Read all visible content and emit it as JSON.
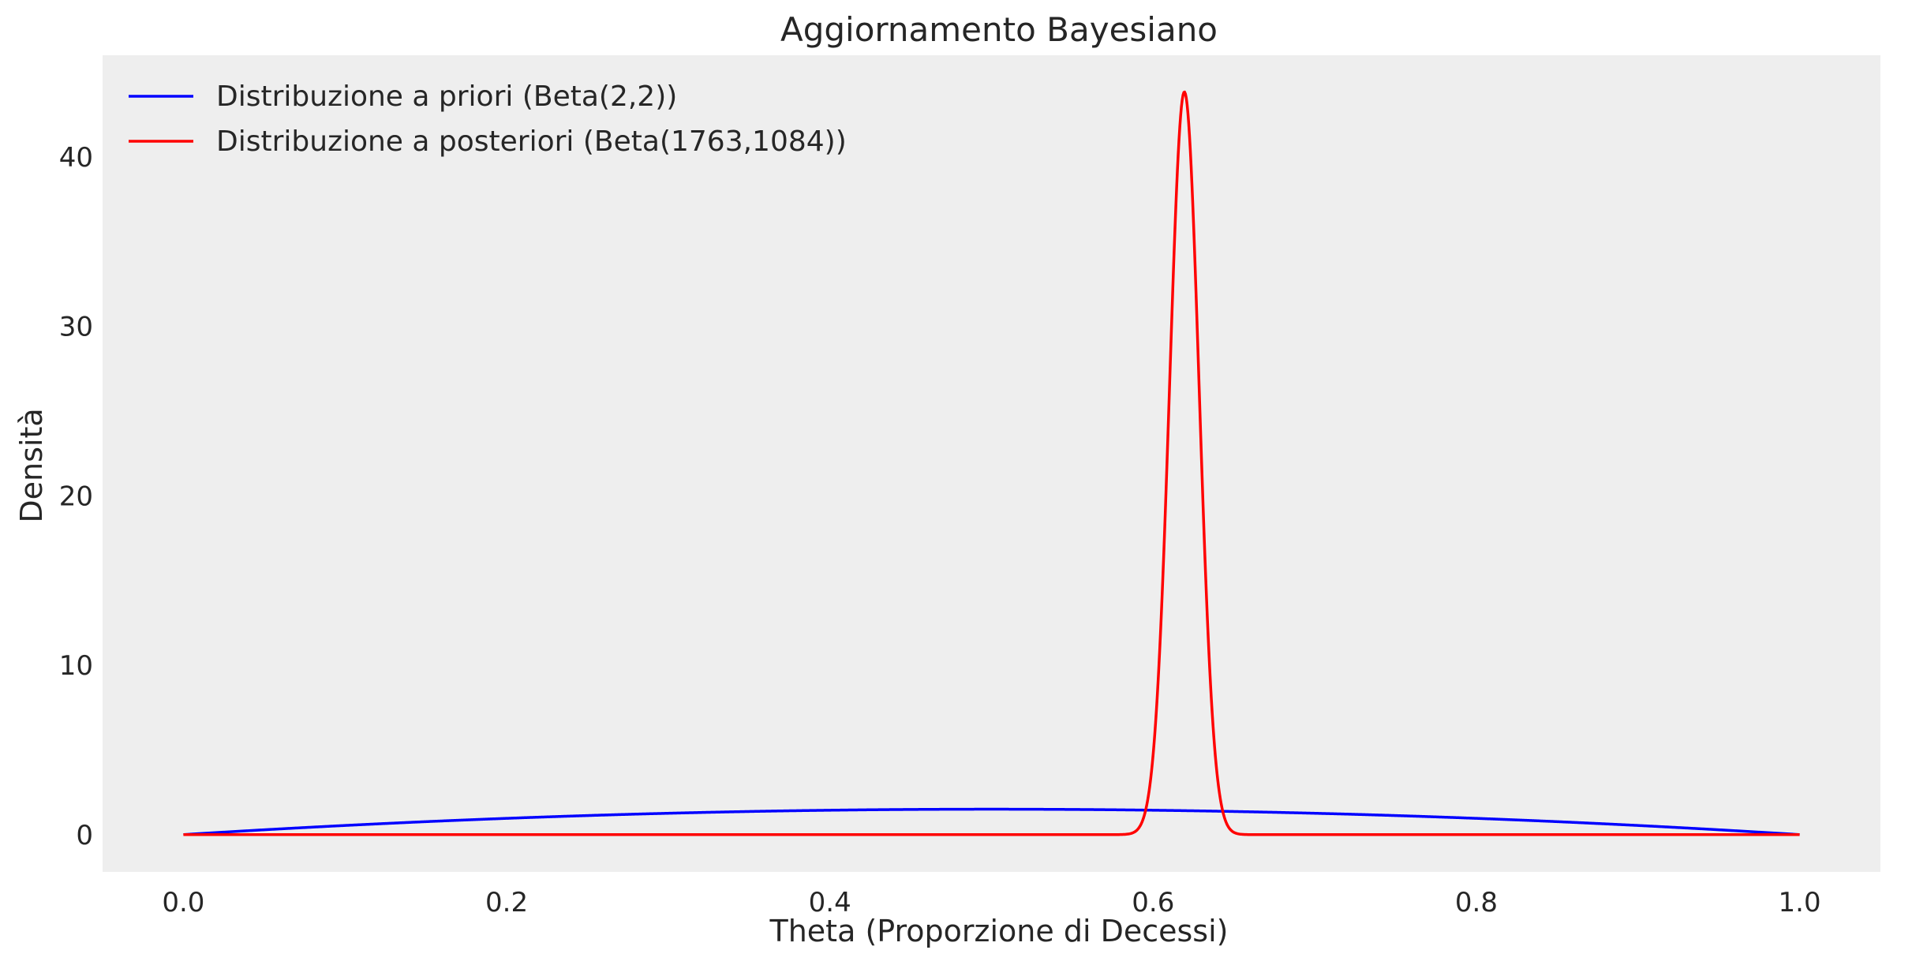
{
  "chart_data": {
    "type": "line",
    "title": "Aggiornamento Bayesiano",
    "xlabel": "Theta (Proporzione di Decessi)",
    "ylabel": "Densità",
    "xlim": [
      -0.05,
      1.05
    ],
    "ylim": [
      -2.2,
      46.0
    ],
    "x_ticks": [
      0.0,
      0.2,
      0.4,
      0.6,
      0.8,
      1.0
    ],
    "x_tick_labels": [
      "0.0",
      "0.2",
      "0.4",
      "0.6",
      "0.8",
      "1.0"
    ],
    "y_ticks": [
      0,
      10,
      20,
      30,
      40
    ],
    "y_tick_labels": [
      "0",
      "10",
      "20",
      "30",
      "40"
    ],
    "grid": false,
    "legend_position": "top-left",
    "background_color": "#eeeeee",
    "series": [
      {
        "name": "Distribuzione a priori (Beta(2,2))",
        "color": "#0000ff",
        "distribution": "beta",
        "alpha": 2,
        "beta": 2
      },
      {
        "name": "Distribuzione a posteriori (Beta(1763,1084))",
        "color": "#ff0000",
        "distribution": "beta",
        "alpha": 1763,
        "beta": 1084
      }
    ]
  }
}
